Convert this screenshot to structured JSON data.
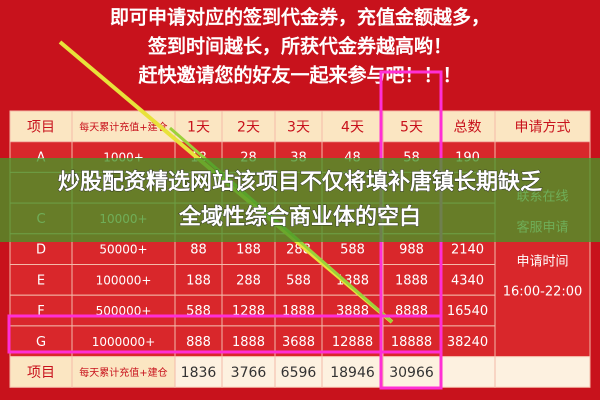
{
  "header": {
    "lines": [
      "即可申请对应的签到代金券，充值金额越多，",
      "签到时间越长，所获代金券越高哟！",
      "赶快邀请您的好友一起来参与吧！！！"
    ]
  },
  "table": {
    "columns": [
      "项目",
      "每天累计充值+建仓",
      "1天",
      "2天",
      "3天",
      "4天",
      "5天",
      "总数",
      "申请方式"
    ],
    "rows": [
      [
        "A",
        "1000+",
        "18",
        "28",
        "38",
        "48",
        "58",
        "190"
      ],
      [
        "C",
        "10000+"
      ],
      [
        "D",
        "50000+",
        "88",
        "188",
        "288",
        "588",
        "988",
        "2140"
      ],
      [
        "E",
        "100000+",
        "188",
        "288",
        "588",
        "1388",
        "1888",
        "4340"
      ],
      [
        "F",
        "500000+",
        "588",
        "1288",
        "1888",
        "3888",
        "8888",
        "16540"
      ],
      [
        "G",
        "1000000+",
        "888",
        "1888",
        "3688",
        "12888",
        "18888",
        "38240"
      ]
    ],
    "footer": [
      "项目",
      "每天累计充值+建仓",
      "1836",
      "3766",
      "6596",
      "18946",
      "30966"
    ],
    "apply_method": [
      "联系在线",
      "客服申请",
      "申请时间",
      "16:00-22:00"
    ]
  },
  "banner": {
    "lines": [
      "炒股配资精选网站该项目不仅将填补唐镇长期缺乏",
      "全域性综合商业体的空白"
    ]
  }
}
